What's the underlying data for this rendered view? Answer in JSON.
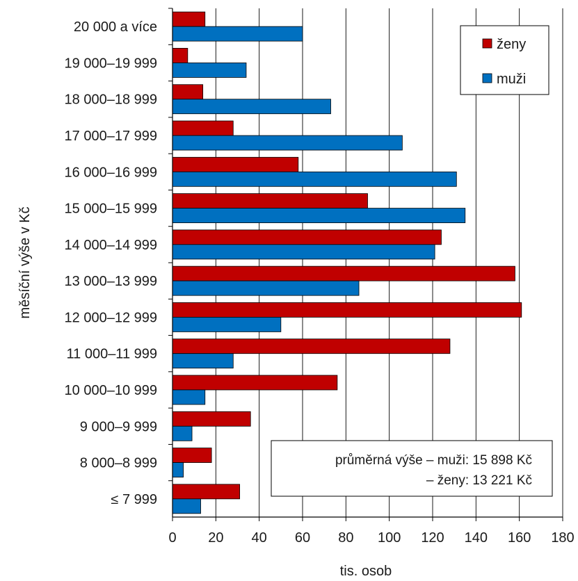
{
  "chart_data": {
    "type": "bar",
    "orientation": "horizontal",
    "xlabel": "tis. osob",
    "ylabel": "měsíční výše v Kč",
    "xlim": [
      0,
      180
    ],
    "xticks": [
      "0",
      "20",
      "40",
      "60",
      "80",
      "100",
      "120",
      "140",
      "160",
      "180"
    ],
    "grid": "vertical",
    "legend_position": "top-right",
    "categories": [
      "20 000 a více",
      "19 000–19 999",
      "18 000–18 999",
      "17 000–17 999",
      "16 000–16 999",
      "15 000–15 999",
      "14 000–14 999",
      "13 000–13 999",
      "12 000–12 999",
      "11 000–11 999",
      "10 000–10 999",
      "9 000–9 999",
      "8 000–8 999",
      "≤ 7 999"
    ],
    "series": [
      {
        "name": "ženy",
        "color": "#c00000",
        "values": [
          15,
          7,
          14,
          28,
          58,
          90,
          124,
          158,
          161,
          128,
          76,
          36,
          18,
          31
        ]
      },
      {
        "name": "muži",
        "color": "#0070c0",
        "values": [
          60,
          34,
          73,
          106,
          131,
          135,
          121,
          86,
          50,
          28,
          15,
          9,
          5,
          13
        ]
      }
    ],
    "annotation": {
      "line1": "průměrná výše – muži: 15 898 Kč",
      "line2": "– ženy: 13 221 Kč"
    }
  }
}
